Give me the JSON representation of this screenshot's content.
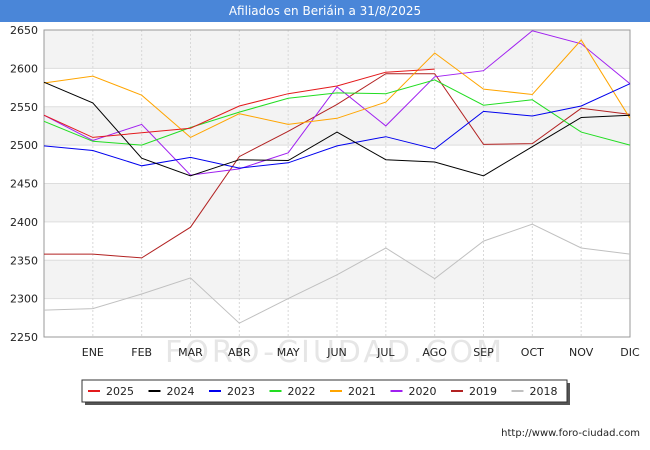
{
  "chart_data": {
    "type": "line",
    "title": "Afiliados en Beriáin a 31/8/2025",
    "xlabel": "",
    "ylabel": "",
    "x": [
      "",
      "ENE",
      "FEB",
      "MAR",
      "ABR",
      "MAY",
      "JUN",
      "JUL",
      "AGO",
      "SEP",
      "OCT",
      "NOV",
      "DIC"
    ],
    "ylim": [
      2250,
      2650
    ],
    "yticks": [
      2250,
      2300,
      2350,
      2400,
      2450,
      2500,
      2550,
      2600,
      2650
    ],
    "grid": true,
    "legend_position": "bottom",
    "series": [
      {
        "name": "2025",
        "color": "#e31a1c",
        "values": [
          2539,
          2510,
          2516,
          2522,
          2551,
          2567,
          2577,
          2595,
          2599,
          null,
          null,
          null,
          null
        ]
      },
      {
        "name": "2024",
        "color": "#000000",
        "values": [
          2582,
          2555,
          2483,
          2460,
          2481,
          2480,
          2517,
          2481,
          2478,
          2460,
          2498,
          2536,
          2539
        ]
      },
      {
        "name": "2023",
        "color": "#0000ee",
        "values": [
          2499,
          2493,
          2473,
          2484,
          2470,
          2477,
          2499,
          2511,
          2495,
          2544,
          2538,
          2551,
          2580
        ]
      },
      {
        "name": "2022",
        "color": "#22dd22",
        "values": [
          2531,
          2505,
          2500,
          2523,
          2543,
          2561,
          2568,
          2567,
          2585,
          2552,
          2559,
          2517,
          2500
        ]
      },
      {
        "name": "2021",
        "color": "#ffa500",
        "values": [
          2581,
          2590,
          2565,
          2510,
          2541,
          2527,
          2535,
          2556,
          2620,
          2573,
          2566,
          2637,
          2535
        ]
      },
      {
        "name": "2020",
        "color": "#a020f0",
        "values": [
          2539,
          2506,
          2527,
          2461,
          2469,
          2490,
          2576,
          2525,
          2589,
          2597,
          2649,
          2632,
          2580
        ]
      },
      {
        "name": "2019",
        "color": "#b22222",
        "values": [
          2358,
          2358,
          2353,
          2393,
          2485,
          2518,
          2553,
          2593,
          2593,
          2501,
          2502,
          2548,
          2540
        ]
      },
      {
        "name": "2018",
        "color": "#c0c0c0",
        "values": [
          2285,
          2287,
          2306,
          2327,
          2268,
          2300,
          2331,
          2366,
          2326,
          2375,
          2397,
          2366,
          2358
        ]
      }
    ]
  },
  "footer": {
    "url": "http://www.foro-ciudad.com"
  },
  "watermark": "FORO-CIUDAD.COM"
}
